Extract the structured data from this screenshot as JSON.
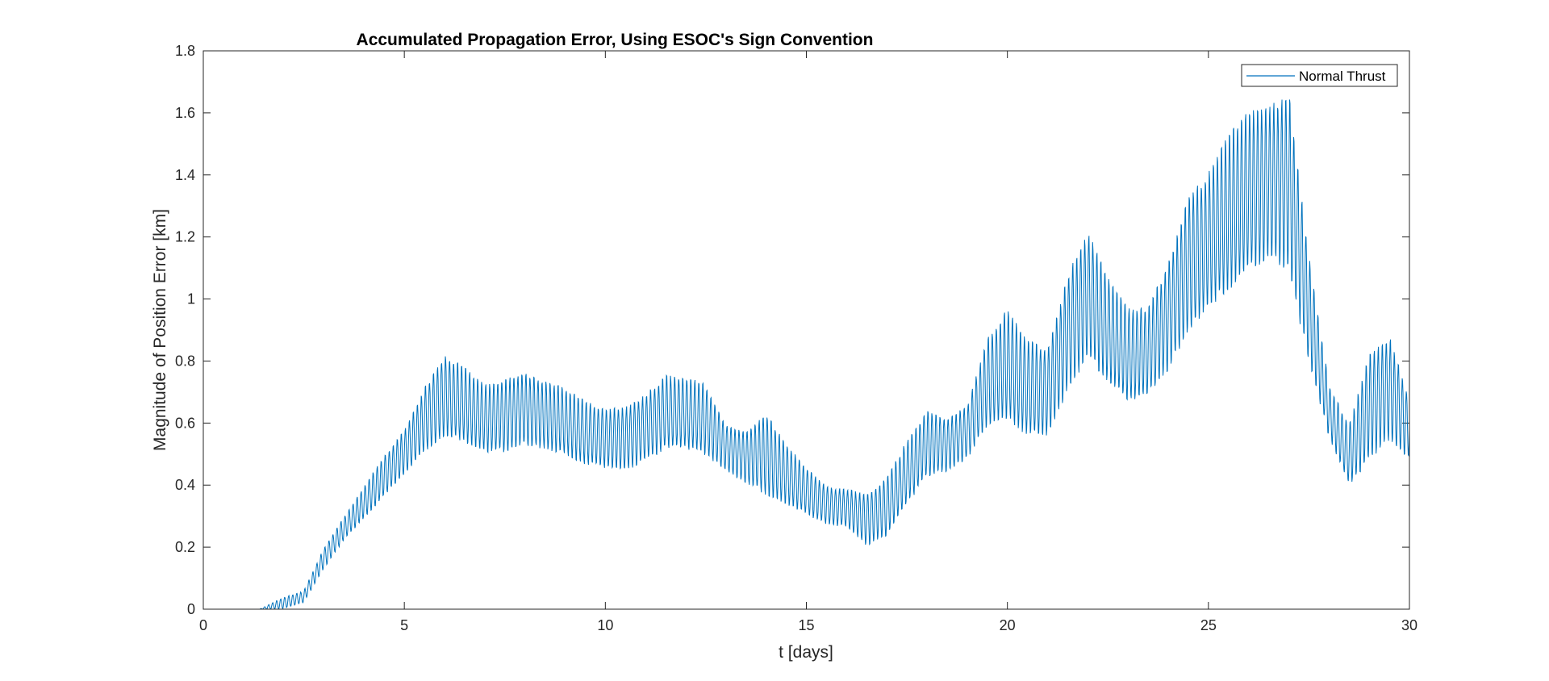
{
  "chart_data": {
    "type": "line",
    "title": "Accumulated Propagation Error, Using ESOC's Sign Convention",
    "xlabel": "t [days]",
    "ylabel": "Magnitude of Position Error [km]",
    "xlim": [
      0,
      30
    ],
    "ylim": [
      0,
      1.8
    ],
    "xticks": [
      0,
      5,
      10,
      15,
      20,
      25,
      30
    ],
    "xtick_labels": [
      "0",
      "5",
      "10",
      "15",
      "20",
      "25",
      "30"
    ],
    "yticks": [
      0,
      0.2,
      0.4,
      0.6,
      0.8,
      1,
      1.2,
      1.4,
      1.6,
      1.8
    ],
    "ytick_labels": [
      "0",
      "0.2",
      "0.4",
      "0.6",
      "0.8",
      "1",
      "1.2",
      "1.4",
      "1.6",
      "1.8"
    ],
    "grid": false,
    "legend_position": "top-right",
    "series": [
      {
        "name": "Normal Thrust",
        "color": "#0072BD",
        "style": "oscillating",
        "oscillation_period_days": 0.1,
        "lower_envelope": {
          "x": [
            0,
            1.4,
            2.0,
            2.5,
            3,
            3.5,
            4,
            4.5,
            5,
            5.5,
            6,
            6.5,
            7,
            7.5,
            8,
            8.5,
            9,
            9.5,
            10,
            10.5,
            11,
            11.5,
            12,
            12.5,
            13,
            13.5,
            14,
            14.5,
            15,
            15.5,
            16,
            16.5,
            17,
            17.5,
            18,
            18.5,
            19,
            19.5,
            20,
            20.5,
            21,
            21.5,
            22,
            22.5,
            23,
            23.5,
            24,
            24.5,
            25,
            25.5,
            26,
            26.5,
            27,
            27.5,
            28,
            28.5,
            29,
            29.5,
            30
          ],
          "y": [
            0,
            0,
            0,
            0.02,
            0.13,
            0.22,
            0.29,
            0.36,
            0.43,
            0.5,
            0.55,
            0.53,
            0.5,
            0.5,
            0.52,
            0.51,
            0.49,
            0.46,
            0.45,
            0.44,
            0.47,
            0.51,
            0.51,
            0.49,
            0.44,
            0.4,
            0.36,
            0.33,
            0.3,
            0.27,
            0.26,
            0.2,
            0.23,
            0.33,
            0.42,
            0.44,
            0.48,
            0.58,
            0.6,
            0.55,
            0.55,
            0.69,
            0.8,
            0.72,
            0.66,
            0.68,
            0.76,
            0.87,
            0.96,
            1.01,
            1.07,
            1.12,
            1.06,
            0.78,
            0.55,
            0.39,
            0.47,
            0.53,
            0.48
          ]
        },
        "upper_envelope": {
          "x": [
            0,
            1.4,
            2.0,
            2.5,
            3,
            3.5,
            4,
            4.5,
            5,
            5.5,
            6,
            6.5,
            7,
            7.5,
            8,
            8.5,
            9,
            9.5,
            10,
            10.5,
            11,
            11.5,
            12,
            12.5,
            13,
            13.5,
            14,
            14.5,
            15,
            15.5,
            16,
            16.5,
            17,
            17.5,
            18,
            18.5,
            19,
            19.5,
            20,
            20.5,
            21,
            21.5,
            22,
            22.5,
            23,
            23.5,
            24,
            24.5,
            25,
            25.5,
            26,
            26.5,
            27,
            27.5,
            28,
            28.5,
            29,
            29.5,
            30
          ],
          "y": [
            0,
            0,
            0.04,
            0.06,
            0.2,
            0.3,
            0.4,
            0.5,
            0.58,
            0.72,
            0.83,
            0.79,
            0.73,
            0.75,
            0.77,
            0.74,
            0.72,
            0.68,
            0.65,
            0.66,
            0.7,
            0.76,
            0.76,
            0.73,
            0.6,
            0.58,
            0.64,
            0.54,
            0.46,
            0.4,
            0.39,
            0.38,
            0.43,
            0.55,
            0.65,
            0.62,
            0.66,
            0.88,
            0.98,
            0.88,
            0.85,
            1.09,
            1.23,
            1.08,
            0.98,
            0.98,
            1.13,
            1.34,
            1.42,
            1.55,
            1.62,
            1.64,
            1.68,
            1.15,
            0.73,
            0.6,
            0.83,
            0.9,
            0.68
          ]
        }
      }
    ]
  }
}
